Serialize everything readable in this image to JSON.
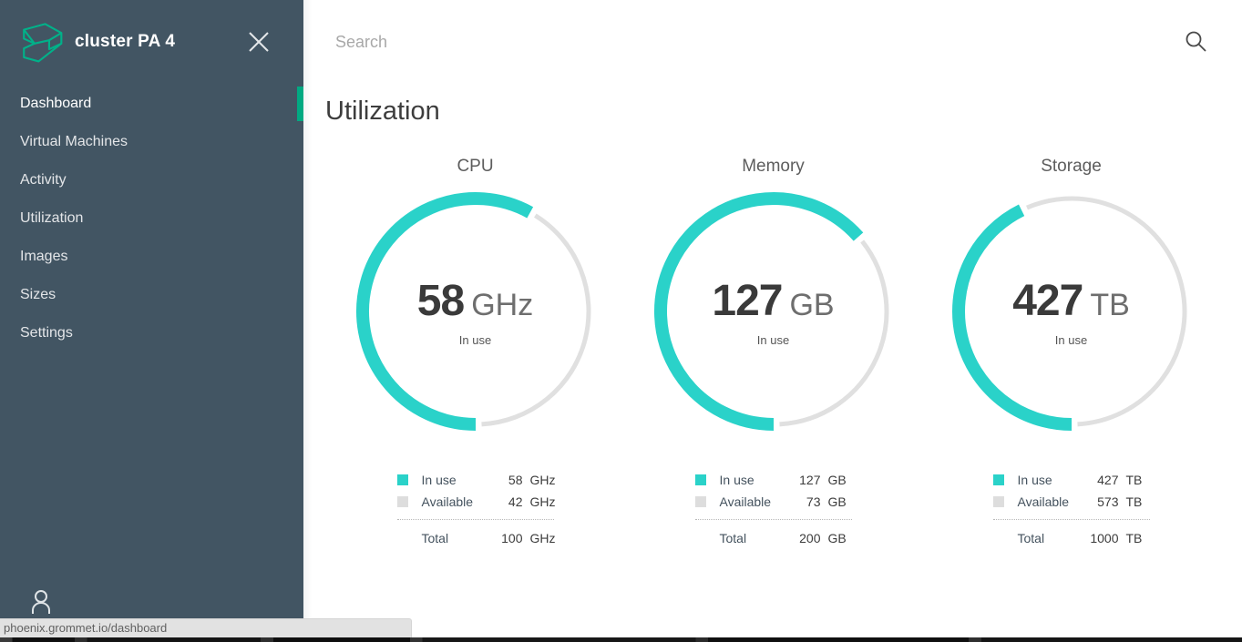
{
  "colors": {
    "sidebar_bg": "#425563",
    "active_indicator": "#01a982",
    "logo_green": "#00b189",
    "meter_in_use": "#2ad2c9",
    "meter_available": "#e0e0e0"
  },
  "sidebar": {
    "title": "cluster PA 4",
    "close_icon": "close-x",
    "items": [
      {
        "label": "Dashboard",
        "active": true
      },
      {
        "label": "Virtual Machines",
        "active": false
      },
      {
        "label": "Activity",
        "active": false
      },
      {
        "label": "Utilization",
        "active": false
      },
      {
        "label": "Images",
        "active": false
      },
      {
        "label": "Sizes",
        "active": false
      },
      {
        "label": "Settings",
        "active": false
      }
    ],
    "user_icon": "person-outline"
  },
  "search": {
    "placeholder": "Search",
    "value": "",
    "icon": "magnifier"
  },
  "page": {
    "heading": "Utilization"
  },
  "labels": {
    "in_use": "In use",
    "available": "Available",
    "total": "Total"
  },
  "meters": [
    {
      "label": "CPU",
      "in_use": 58,
      "available": 42,
      "total": 100,
      "unit": "GHz",
      "caption": "In use"
    },
    {
      "label": "Memory",
      "in_use": 127,
      "available": 73,
      "total": 200,
      "unit": "GB",
      "caption": "In use"
    },
    {
      "label": "Storage",
      "in_use": 427,
      "available": 573,
      "total": 1000,
      "unit": "TB",
      "caption": "In use"
    }
  ],
  "status_bar": {
    "url": "phoenix.grommet.io/dashboard"
  }
}
